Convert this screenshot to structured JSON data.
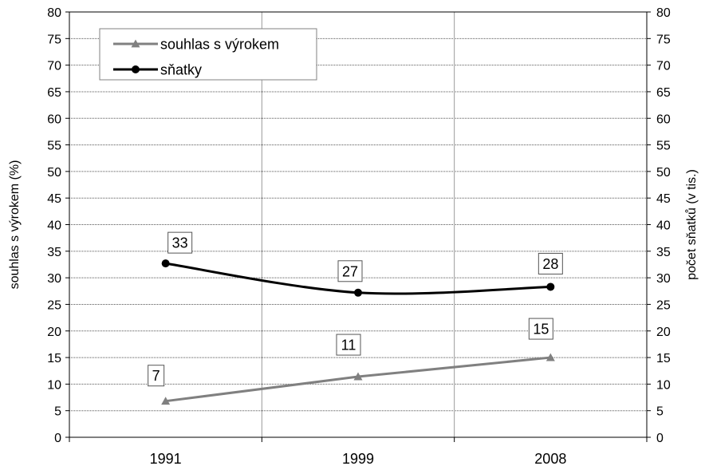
{
  "chart_data": {
    "type": "line",
    "categories": [
      "1991",
      "1999",
      "2008"
    ],
    "series": [
      {
        "name": "souhlas s výrokem",
        "values": [
          7,
          11,
          15
        ],
        "plot_values": [
          6.8,
          11.4,
          15.0
        ],
        "axis": "left",
        "color": "#808080",
        "marker": "triangle",
        "smooth": false
      },
      {
        "name": "sňatky",
        "values": [
          33,
          27,
          28
        ],
        "plot_values": [
          32.7,
          27.2,
          28.3
        ],
        "axis": "right",
        "color": "#000000",
        "marker": "circle",
        "smooth": true
      }
    ],
    "ylabel_left": "souhlas s výrokem (%)",
    "ylabel_right": "počet sňatků (v tis.)",
    "ylim": [
      0,
      80
    ],
    "y_ticks": [
      "0",
      "5",
      "10",
      "15",
      "20",
      "25",
      "30",
      "35",
      "40",
      "45",
      "50",
      "55",
      "60",
      "65",
      "70",
      "75",
      "80"
    ],
    "grid": true,
    "legend": "top-left"
  }
}
